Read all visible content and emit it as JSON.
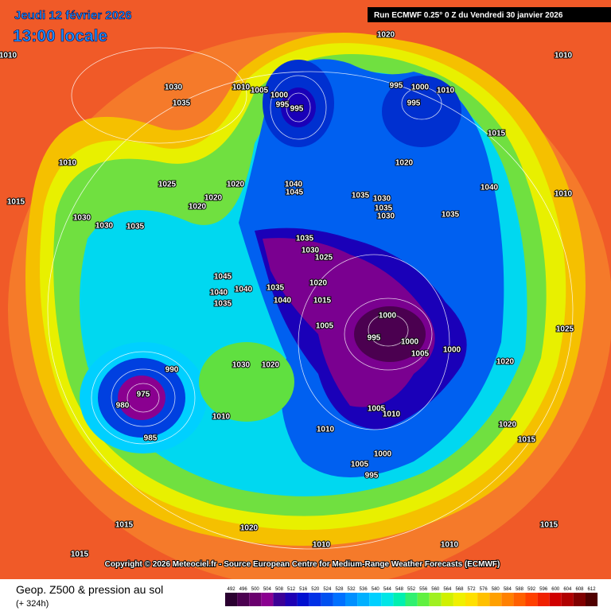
{
  "header": {
    "date": "Jeudi 12 février 2026",
    "time": "13:00 locale",
    "run": "Run ECMWF 0.25° 0 Z du Vendredi 30 janvier 2026"
  },
  "copyright": "Copyright © 2026 Meteociel.fr - Source European Centre for Medium-Range Weather Forecasts (ECMWF)",
  "legend": {
    "title": "Geop. Z500 & pression au sol",
    "lead": "(+ 324h)"
  },
  "scale": {
    "values": [
      492,
      496,
      500,
      504,
      508,
      512,
      516,
      520,
      524,
      528,
      532,
      536,
      540,
      544,
      548,
      552,
      556,
      560,
      564,
      568,
      572,
      576,
      580,
      584,
      588,
      592,
      596,
      600,
      604,
      608,
      612
    ],
    "colors": [
      "#2a0030",
      "#4b0050",
      "#6a006e",
      "#8a0090",
      "#3c0096",
      "#1e00b4",
      "#0010d0",
      "#0030e6",
      "#0050f0",
      "#0070ff",
      "#0090ff",
      "#00b0ff",
      "#00d0ff",
      "#00e6e6",
      "#00f0b0",
      "#30f070",
      "#60f040",
      "#a0f020",
      "#d0f000",
      "#f0f000",
      "#ffe000",
      "#ffc000",
      "#ffa000",
      "#ff8000",
      "#ff6000",
      "#ff4000",
      "#f02000",
      "#d00000",
      "#b00000",
      "#800000",
      "#500000"
    ]
  },
  "isobars": [
    "1020",
    "1010",
    "1010",
    "1030",
    "1035",
    "1010",
    "1005",
    "1000",
    "995",
    "995",
    "995",
    "1000",
    "1010",
    "995",
    "1015",
    "1010",
    "1020",
    "1025",
    "1020",
    "1020",
    "1040",
    "1045",
    "1035",
    "1030",
    "1035",
    "1030",
    "1035",
    "1040",
    "1010",
    "1015",
    "1030",
    "1030",
    "1035",
    "1020",
    "1035",
    "1030",
    "1025",
    "1020",
    "1045",
    "1040",
    "1035",
    "1040",
    "1035",
    "1040",
    "1015",
    "1005",
    "1000",
    "995",
    "1000",
    "1005",
    "1000",
    "1020",
    "1025",
    "990",
    "975",
    "980",
    "985",
    "1010",
    "1010",
    "1005",
    "1010",
    "1000",
    "1005",
    "995",
    "1015",
    "1020",
    "1010",
    "1010",
    "1015",
    "1015",
    "1015",
    "1020",
    "1030",
    "1020"
  ]
}
